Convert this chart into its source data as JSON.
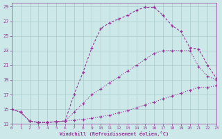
{
  "xlabel": "Windchill (Refroidissement éolien,°C)",
  "bg_color": "#cce8e8",
  "grid_color": "#aacccc",
  "line_color": "#993399",
  "xlim": [
    0,
    23
  ],
  "ylim": [
    13,
    29.5
  ],
  "xticks": [
    0,
    1,
    2,
    3,
    4,
    5,
    6,
    7,
    8,
    9,
    10,
    11,
    12,
    13,
    14,
    15,
    16,
    17,
    18,
    19,
    20,
    21,
    22,
    23
  ],
  "yticks": [
    13,
    15,
    17,
    19,
    21,
    23,
    25,
    27,
    29
  ],
  "line1_x": [
    0,
    1,
    2,
    3,
    4,
    5,
    6,
    7,
    8,
    9,
    10,
    11,
    12,
    13,
    14,
    15,
    16,
    17,
    18,
    19,
    20,
    21,
    22,
    23
  ],
  "line1_y": [
    15.0,
    14.6,
    13.4,
    13.2,
    13.2,
    13.3,
    13.4,
    13.5,
    13.6,
    13.8,
    14.0,
    14.2,
    14.5,
    14.8,
    15.2,
    15.6,
    16.0,
    16.4,
    16.8,
    17.2,
    17.6,
    18.0,
    18.0,
    18.2
  ],
  "line2_x": [
    0,
    1,
    2,
    3,
    4,
    5,
    6,
    7,
    8,
    9,
    10,
    11,
    12,
    13,
    14,
    15,
    16,
    17,
    18,
    19,
    20,
    21,
    22,
    23
  ],
  "line2_y": [
    15.0,
    14.6,
    13.4,
    13.2,
    13.2,
    13.3,
    13.4,
    14.6,
    15.8,
    17.0,
    17.8,
    18.6,
    19.4,
    20.2,
    21.0,
    21.8,
    22.6,
    23.0,
    23.0,
    23.0,
    23.0,
    20.8,
    19.5,
    19.0
  ],
  "line3_x": [
    0,
    1,
    2,
    3,
    4,
    5,
    6,
    7,
    8,
    9,
    10,
    11,
    12,
    13,
    14,
    15,
    16,
    17,
    18,
    19,
    20,
    21,
    22,
    23
  ],
  "line3_y": [
    15.0,
    14.6,
    13.4,
    13.2,
    13.2,
    13.3,
    13.4,
    17.0,
    20.0,
    23.4,
    26.0,
    26.8,
    27.3,
    27.8,
    28.5,
    28.9,
    28.9,
    27.8,
    26.4,
    25.6,
    23.4,
    23.2,
    21.0,
    19.2
  ],
  "line1_style": "dotted",
  "line2_style": "dotted",
  "line3_style": "dashed"
}
